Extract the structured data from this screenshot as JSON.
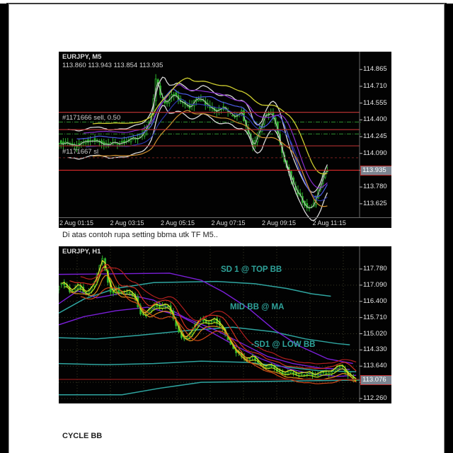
{
  "page": {
    "caption_m5": "Di atas contoh rupa setting bbma utk TF M5..",
    "caption_cycle": "CYCLE BB"
  },
  "chart_m5": {
    "title": "EURJPY, M5",
    "ohlc": "113.860 113.943 113.854 113.935",
    "order_label_1": "#1171666 sell, 0.50",
    "order_label_2": "#1171667 sl",
    "current_price_label": "113.935"
  },
  "chart_h1": {
    "title": "EURJPY, H1",
    "annotation_top": "SD 1 @ TOP BB",
    "annotation_mid": "MID BB @ MA",
    "annotation_low": "-SD1 @ LOW BB",
    "current_price_label": "113.076"
  },
  "chart_data": [
    {
      "type": "candlestick",
      "symbol": "EURJPY",
      "timeframe": "M5",
      "title": "EURJPY, M5",
      "ohlc_readout": {
        "open": 113.86,
        "high": 113.943,
        "low": 113.854,
        "close": 113.935
      },
      "current_price": 113.935,
      "ylim": [
        113.5,
        115.03
      ],
      "y_ticks": [
        "114.865",
        "114.710",
        "114.555",
        "114.400",
        "114.245",
        "114.090",
        "113.935",
        "113.780",
        "113.625"
      ],
      "x_ticks": [
        "2 Aug 01:15",
        "2 Aug 03:15",
        "2 Aug 05:15",
        "2 Aug 07:15",
        "2 Aug 09:15",
        "2 Aug 11:15"
      ],
      "levels": [
        {
          "price": 114.38,
          "style": "dashdot",
          "color": "#2f8f2f",
          "w": 1
        },
        {
          "price": 114.27,
          "style": "dashdot",
          "color": "#2f8f2f",
          "w": 1
        },
        {
          "price": 114.47,
          "style": "solid",
          "color": "#b03030",
          "w": 1.2,
          "note": "sell entry #1171666"
        },
        {
          "price": 114.31,
          "style": "solid",
          "color": "#b03030",
          "w": 1.2
        },
        {
          "price": 114.16,
          "style": "solid",
          "color": "#b03030",
          "w": 1.2,
          "note": "stop loss #1171667"
        },
        {
          "price": 114.05,
          "style": "dashed",
          "color": "#7a2020",
          "w": 1
        },
        {
          "price": 113.935,
          "style": "solid",
          "color": "#d02828",
          "w": 1.2,
          "note": "current price"
        }
      ],
      "price_path": [
        [
          0,
          114.2
        ],
        [
          0.06,
          114.16
        ],
        [
          0.12,
          114.22
        ],
        [
          0.18,
          114.17
        ],
        [
          0.24,
          114.2
        ],
        [
          0.3,
          114.26
        ],
        [
          0.33,
          114.45
        ],
        [
          0.345,
          114.79
        ],
        [
          0.36,
          114.62
        ],
        [
          0.38,
          114.55
        ],
        [
          0.4,
          114.65
        ],
        [
          0.43,
          114.58
        ],
        [
          0.46,
          114.52
        ],
        [
          0.49,
          114.6
        ],
        [
          0.52,
          114.55
        ],
        [
          0.55,
          114.47
        ],
        [
          0.58,
          114.52
        ],
        [
          0.61,
          114.43
        ],
        [
          0.64,
          114.48
        ],
        [
          0.66,
          114.3
        ],
        [
          0.68,
          114.15
        ],
        [
          0.7,
          114.28
        ],
        [
          0.72,
          114.44
        ],
        [
          0.74,
          114.47
        ],
        [
          0.76,
          114.35
        ],
        [
          0.78,
          114.1
        ],
        [
          0.8,
          113.95
        ],
        [
          0.82,
          113.8
        ],
        [
          0.85,
          113.66
        ],
        [
          0.87,
          113.57
        ],
        [
          0.89,
          113.62
        ],
        [
          0.91,
          113.78
        ],
        [
          0.93,
          113.935
        ]
      ],
      "lines": [],
      "ma_lines": [
        {
          "color": "#d8d8d8",
          "window": 5,
          "offset": 0.13,
          "w": 1.3
        },
        {
          "color": "#d8d8d8",
          "window": 5,
          "offset": -0.13,
          "w": 1.3
        },
        {
          "color": "#c0c0c0",
          "window": 2,
          "offset": 0,
          "w": 1
        },
        {
          "color": "#4d5ce8",
          "window": 9,
          "offset": 0.05,
          "w": 1.2
        },
        {
          "color": "#2b35a8",
          "window": 13,
          "offset": -0.03,
          "w": 1.2
        },
        {
          "color": "#8a2fd0",
          "window": 12,
          "offset": 0.1,
          "w": 1.2
        },
        {
          "color": "#cfcf2f",
          "window": 16,
          "offset": 0.18,
          "w": 1.3
        },
        {
          "color": "#cf8f2f",
          "window": 16,
          "offset": -0.12,
          "w": 1.2
        }
      ]
    },
    {
      "type": "candlestick",
      "symbol": "EURJPY",
      "timeframe": "H1",
      "title": "EURJPY, H1",
      "current_price": 113.076,
      "ylim": [
        112.11,
        118.745
      ],
      "y_ticks": [
        "117.780",
        "117.090",
        "116.400",
        "115.710",
        "115.020",
        "114.330",
        "113.640",
        "112.950",
        "112.260"
      ],
      "x_ticks": [],
      "annotations": [
        "SD 1 @ TOP BB",
        "MID BB @ MA",
        "-SD1 @ LOW BB"
      ],
      "levels": [
        {
          "price": 113.076,
          "style": "solid",
          "color": "#8a1a1a",
          "w": 1.2,
          "note": "current price"
        }
      ],
      "price_path": [
        [
          0,
          116.95
        ],
        [
          0.02,
          117.25
        ],
        [
          0.045,
          116.75
        ],
        [
          0.07,
          117.1
        ],
        [
          0.095,
          116.7
        ],
        [
          0.115,
          117.05
        ],
        [
          0.13,
          117.55
        ],
        [
          0.145,
          118.35
        ],
        [
          0.16,
          117.4
        ],
        [
          0.175,
          116.7
        ],
        [
          0.19,
          116.95
        ],
        [
          0.21,
          116.65
        ],
        [
          0.23,
          116.85
        ],
        [
          0.25,
          116.55
        ],
        [
          0.27,
          115.75
        ],
        [
          0.29,
          115.95
        ],
        [
          0.31,
          116.3
        ],
        [
          0.33,
          116.1
        ],
        [
          0.35,
          116.3
        ],
        [
          0.365,
          115.85
        ],
        [
          0.38,
          115.3
        ],
        [
          0.4,
          114.75
        ],
        [
          0.42,
          114.95
        ],
        [
          0.44,
          115.45
        ],
        [
          0.46,
          115.65
        ],
        [
          0.48,
          115.5
        ],
        [
          0.5,
          115.65
        ],
        [
          0.52,
          115.35
        ],
        [
          0.54,
          114.85
        ],
        [
          0.56,
          114.35
        ],
        [
          0.58,
          114.15
        ],
        [
          0.6,
          113.85
        ],
        [
          0.62,
          114.05
        ],
        [
          0.64,
          113.75
        ],
        [
          0.66,
          113.55
        ],
        [
          0.68,
          113.7
        ],
        [
          0.7,
          113.45
        ],
        [
          0.72,
          113.3
        ],
        [
          0.74,
          113.4
        ],
        [
          0.76,
          113.25
        ],
        [
          0.78,
          113.3
        ],
        [
          0.8,
          113.35
        ],
        [
          0.82,
          113.2
        ],
        [
          0.84,
          113.4
        ],
        [
          0.86,
          113.3
        ],
        [
          0.88,
          113.55
        ],
        [
          0.9,
          113.65
        ],
        [
          0.92,
          113.3
        ],
        [
          0.94,
          113.08
        ]
      ],
      "lines": [
        {
          "name": "bb-top-teal",
          "color": "#2fa5a0",
          "w": 1.5,
          "points": [
            [
              0,
              115.9
            ],
            [
              0.08,
              116.5
            ],
            [
              0.18,
              116.95
            ],
            [
              0.3,
              117.2
            ],
            [
              0.5,
              117.25
            ],
            [
              0.62,
              117.15
            ],
            [
              0.72,
              116.95
            ],
            [
              0.8,
              116.72
            ],
            [
              0.86,
              116.62
            ]
          ]
        },
        {
          "name": "bb-mid-teal",
          "color": "#2fa5a0",
          "w": 1.5,
          "points": [
            [
              0,
              114.85
            ],
            [
              0.12,
              114.8
            ],
            [
              0.25,
              114.95
            ],
            [
              0.4,
              115.15
            ],
            [
              0.55,
              115.3
            ],
            [
              0.68,
              115.1
            ],
            [
              0.78,
              114.8
            ],
            [
              0.88,
              114.6
            ],
            [
              0.92,
              114.55
            ]
          ]
        },
        {
          "name": "bb-low-teal",
          "color": "#2fa5a0",
          "w": 1.5,
          "points": [
            [
              0,
              113.75
            ],
            [
              0.15,
              113.7
            ],
            [
              0.3,
              113.75
            ],
            [
              0.45,
              113.85
            ],
            [
              0.6,
              113.8
            ],
            [
              0.72,
              113.6
            ],
            [
              0.82,
              113.45
            ],
            [
              0.94,
              113.4
            ]
          ]
        },
        {
          "name": "bb-outer-low-teal",
          "color": "#2fa5a0",
          "w": 1.5,
          "points": [
            [
              0,
              112.42
            ],
            [
              0.2,
              112.42
            ],
            [
              0.32,
              112.7
            ],
            [
              0.45,
              112.95
            ],
            [
              0.7,
              113.0
            ],
            [
              0.98,
              113.05
            ]
          ]
        },
        {
          "name": "purple-upper",
          "color": "#7a1fd8",
          "w": 1.4,
          "points": [
            [
              0,
              117.55
            ],
            [
              0.35,
              117.6
            ],
            [
              0.45,
              117.3
            ],
            [
              0.52,
              116.8
            ],
            [
              0.6,
              116.1
            ],
            [
              0.68,
              115.2
            ],
            [
              0.76,
              114.5
            ],
            [
              0.85,
              113.95
            ],
            [
              0.93,
              113.75
            ]
          ]
        },
        {
          "name": "purple-mid",
          "color": "#7a1fd8",
          "w": 1.4,
          "points": [
            [
              0,
              116.3
            ],
            [
              0.06,
              116.85
            ],
            [
              0.12,
              116.55
            ],
            [
              0.2,
              116.75
            ],
            [
              0.3,
              116.45
            ],
            [
              0.4,
              115.7
            ],
            [
              0.5,
              115.15
            ],
            [
              0.58,
              114.6
            ],
            [
              0.66,
              114.05
            ],
            [
              0.74,
              113.75
            ],
            [
              0.83,
              113.55
            ],
            [
              0.92,
              113.5
            ]
          ]
        },
        {
          "name": "purple-low",
          "color": "#7a1fd8",
          "w": 1.4,
          "points": [
            [
              0,
              115.4
            ],
            [
              0.08,
              115.75
            ],
            [
              0.18,
              116.0
            ],
            [
              0.28,
              116.15
            ],
            [
              0.38,
              115.8
            ],
            [
              0.48,
              115.1
            ],
            [
              0.56,
              114.5
            ],
            [
              0.64,
              113.95
            ],
            [
              0.72,
              113.55
            ],
            [
              0.8,
              113.3
            ],
            [
              0.88,
              113.2
            ],
            [
              0.94,
              113.25
            ]
          ]
        }
      ],
      "ma_lines": [
        {
          "color": "#dede2a",
          "window": 2,
          "offset": 0.06,
          "w": 1.3
        },
        {
          "color": "#b8d81f",
          "window": 3,
          "offset": -0.08,
          "w": 1.2
        },
        {
          "color": "#cf2f1f",
          "window": 5,
          "offset": 0.25,
          "w": 1.2
        },
        {
          "color": "#e08818",
          "window": 5,
          "offset": -0.22,
          "w": 1.2
        },
        {
          "color": "#b01f1f",
          "window": 9,
          "offset": 0.45,
          "w": 1.2
        },
        {
          "color": "#d04818",
          "window": 9,
          "offset": -0.4,
          "w": 1.2
        }
      ],
      "grid": true
    }
  ]
}
